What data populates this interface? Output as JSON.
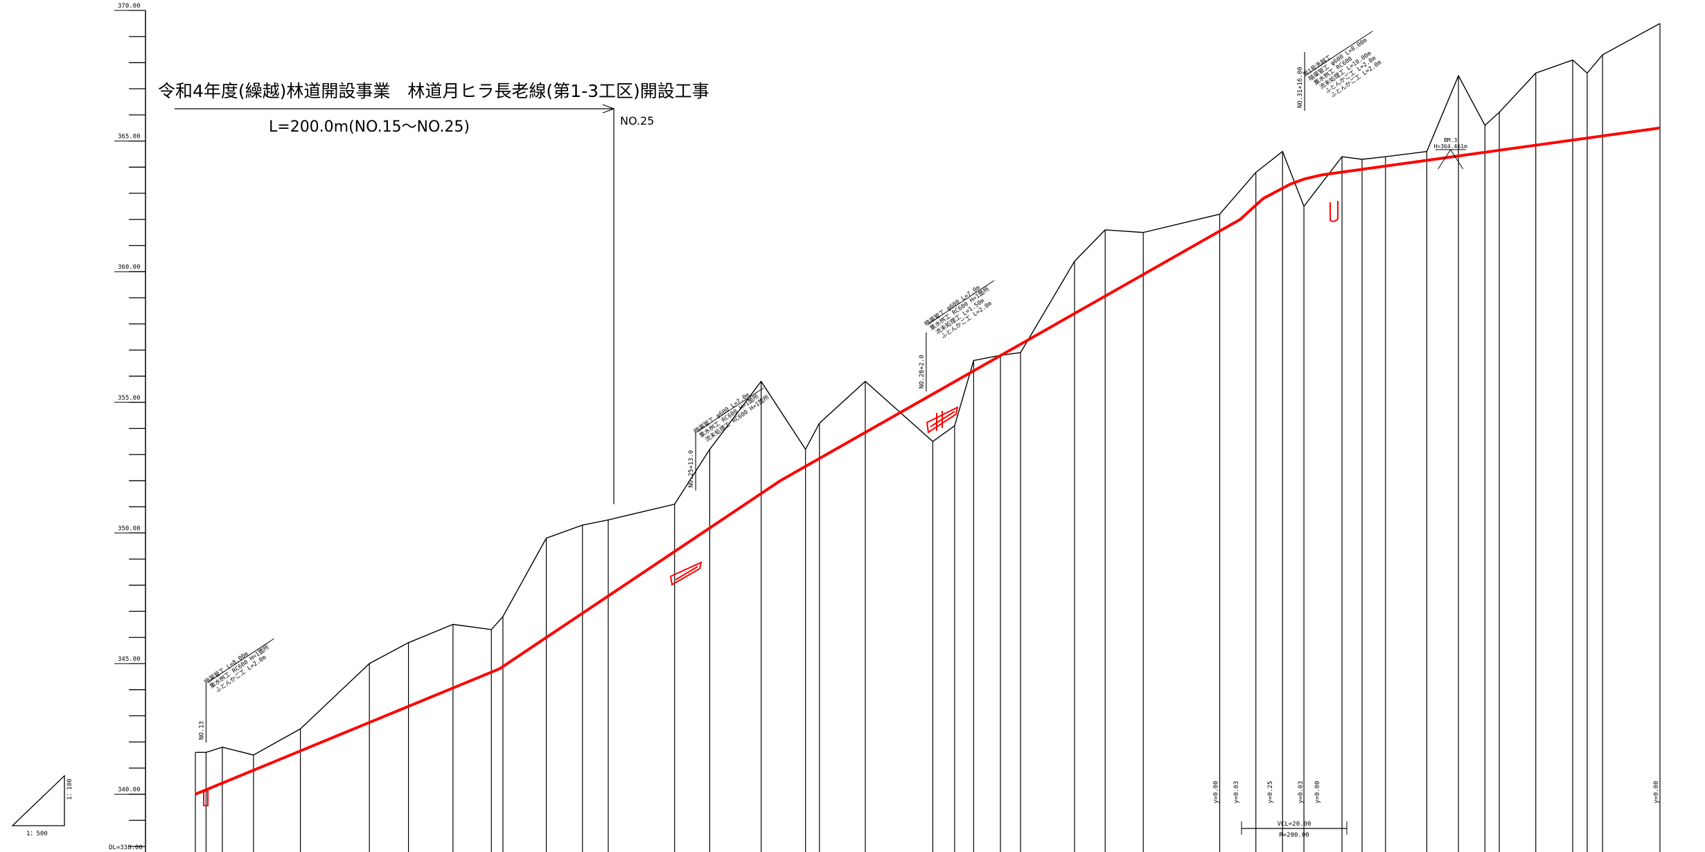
{
  "title": "令和4年度(繰越)林道開設事業　林道月ヒラ長老線(第1-3工区)開設工事",
  "length_label": "L=200.0m(NO.15〜NO.25)",
  "end_station_label": "NO.25",
  "datum_label": "DL=338.00",
  "scale": {
    "horizontal": "1：500",
    "vertical": "1：100"
  },
  "colors": {
    "line": "#000000",
    "plan_line": "#ff0000"
  },
  "chart_data": {
    "type": "line",
    "ylim": [
      338,
      370
    ],
    "xlim": [
      0,
      1000
    ],
    "y_ticks": [
      {
        "value": 340,
        "label": "340.00"
      },
      {
        "value": 345,
        "label": "345.00"
      },
      {
        "value": 350,
        "label": "350.00"
      },
      {
        "value": 355,
        "label": "355.00"
      },
      {
        "value": 360,
        "label": "360.00"
      },
      {
        "value": 365,
        "label": "365.00"
      },
      {
        "value": 370,
        "label": "370.00"
      }
    ],
    "ground_profile": {
      "x": [
        0,
        7.3,
        18.4,
        39.7,
        71.7,
        118.8,
        145.5,
        175.9,
        202.1,
        210,
        239.6,
        264.3,
        281.9,
        327.2,
        351.2,
        386.3,
        416.6,
        426.1,
        457.4,
        503.5,
        518.4,
        531.4,
        549.7,
        563.4,
        600.3,
        621.2,
        647.2,
        699.4,
        724.1,
        742.3,
        756.9,
        782.9,
        796.6,
        812.6,
        840.8,
        862.4,
        880.5,
        890.3,
        915.2,
        940.4,
        950.3,
        960.8,
        1000
      ],
      "y": [
        341.6,
        341.6,
        341.8,
        341.5,
        342.5,
        345,
        345.8,
        346.5,
        346.3,
        346.8,
        349.8,
        350.3,
        350.5,
        351.1,
        353.2,
        355.8,
        353.2,
        354.2,
        355.8,
        353.5,
        354.1,
        356.6,
        356.8,
        356.9,
        360.4,
        361.6,
        361.5,
        362.2,
        363.8,
        364.6,
        362.5,
        364.4,
        364.3,
        364.4,
        364.6,
        367.5,
        365.6,
        366.1,
        367.6,
        368.1,
        367.6,
        368.3,
        369.5
      ]
    },
    "plan_profile": {
      "x": [
        0,
        207.7,
        399.4,
        713.4,
        729.1,
        747.6,
        757.4,
        768.8,
        1000
      ],
      "y": [
        340,
        344.8,
        352,
        362,
        362.8,
        363.35,
        363.55,
        363.7,
        365.5
      ]
    },
    "stations": [
      {
        "x": 7.3,
        "label": "NO.13"
      },
      {
        "x": 341.6,
        "label": "NO.25+13.0"
      },
      {
        "x": 499,
        "label": "NO.28+2.0"
      },
      {
        "x": 757.4,
        "label": "NO.31+16.00"
      }
    ],
    "structure_notes": [
      {
        "x": 7.3,
        "lines": [
          "暗渠管工 L=8.00m",
          "集水桝工 RC600 H=1箇所",
          "ふとんかご工 L=2.0m"
        ]
      },
      {
        "x": 341.6,
        "lines": [
          "暗渠管工 φ600 L=7.0m",
          "集水桝工 RC600 H=1箇所",
          "流末処理工 RC600 H=1箇所"
        ]
      },
      {
        "x": 499,
        "lines": [
          "暗渠管工 φ600 L=7.0m",
          "集水桝工 RC600 H=1箇所",
          "流末処理工 L=1.50m",
          "ふとんかご工 L=2.0m"
        ]
      },
      {
        "x": 757.4,
        "lines": [
          "第1号洗越工",
          "暗渠管工 φ600 L=8.00m",
          "集水桝工 RC600",
          "流末処理工 L=10.00m",
          "ふとんかご工 L=2.0m",
          "ふとんかご工 L=2.0m"
        ]
      }
    ],
    "benchmark": {
      "x": 857,
      "label": "BM.3",
      "elevation": "H=364.461m"
    },
    "vertical_curve": {
      "vcl": "VCL=20.00",
      "r": "R=200.00"
    },
    "grade_labels": [
      {
        "x": 699.4,
        "label": "y=0.00"
      },
      {
        "x": 713.4,
        "label": "y=0.03"
      },
      {
        "x": 736.5,
        "label": "y=0.25"
      },
      {
        "x": 757.4,
        "label": "y=0.03"
      },
      {
        "x": 768.8,
        "label": "y=0.00"
      },
      {
        "x": 1000,
        "label": "y=0.00"
      }
    ]
  }
}
